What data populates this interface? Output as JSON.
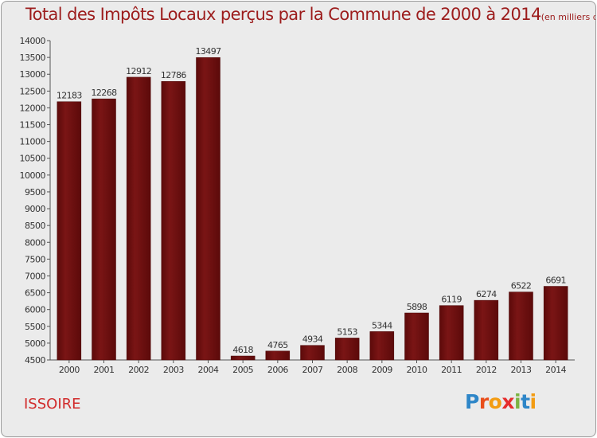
{
  "title": "Total des Impôts Locaux perçus par la Commune de 2000 à 2014",
  "title_unit": "(en milliers d'€)",
  "commune": "ISSOIRE",
  "logo_letters": [
    "P",
    "r",
    "o",
    "x",
    "i",
    "t",
    "i"
  ],
  "logo_colors": [
    "#2e86c8",
    "#e94e1b",
    "#f39c12",
    "#e62d2d",
    "#7cb342",
    "#2e86c8",
    "#f39c12"
  ],
  "colors": {
    "bar": "#7a1515",
    "bar_edge": "#4a0606",
    "title": "#9c1c1c",
    "commune": "#d12b2b",
    "background": "#ebebeb"
  },
  "chart_data": {
    "type": "bar",
    "title": "Total des Impôts Locaux perçus par la Commune de 2000 à 2014",
    "xlabel": "",
    "ylabel": "",
    "categories": [
      "2000",
      "2001",
      "2002",
      "2003",
      "2004",
      "2005",
      "2006",
      "2007",
      "2008",
      "2009",
      "2010",
      "2011",
      "2012",
      "2013",
      "2014"
    ],
    "values": [
      12183,
      12268,
      12912,
      12786,
      13497,
      4618,
      4765,
      4934,
      5153,
      5344,
      5898,
      6119,
      6274,
      6522,
      6691
    ],
    "ylim": [
      4500,
      14000
    ],
    "yticks": [
      4500,
      5000,
      5500,
      6000,
      6500,
      7000,
      7500,
      8000,
      8500,
      9000,
      9500,
      10000,
      10500,
      11000,
      11500,
      12000,
      12500,
      13000,
      13500,
      14000
    ],
    "grid": false,
    "data_labels": true
  }
}
